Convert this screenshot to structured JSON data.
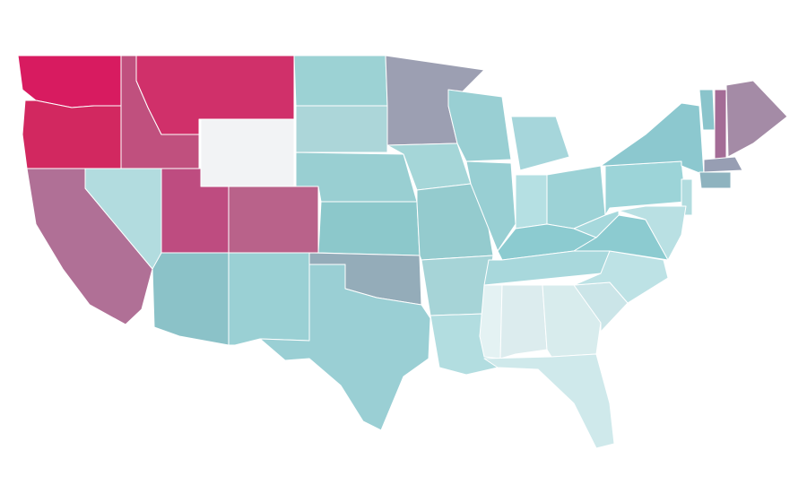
{
  "map": {
    "region_colors": [
      "#d81b60",
      "#d22860",
      "#c0507e",
      "#d0306a",
      "#f2f3f5",
      "#b07096",
      "#b2dcdf",
      "#be4c80",
      "#b9628a",
      "#8bc2c8",
      "#9ad0d4",
      "#9cd2d4",
      "#acd6d9",
      "#99cfd2",
      "#8cc8cb",
      "#94acb9",
      "#9acfd4",
      "#9c9fb2",
      "#a5d6d8",
      "#94cbce",
      "#a6d4d7",
      "#b2dde0",
      "#99cfd3",
      "#98cfd3",
      "#a6d6db",
      "#b5e0e3",
      "#9cd2d6",
      "#8ccbd0",
      "#a8d8dc",
      "#e4f2f3",
      "#dcecee",
      "#d8eced",
      "#cfe9eb",
      "#cbe5e8",
      "#bde2e5",
      "#8ccbd0",
      "#a6d8dc",
      "#9cd4d8",
      "#8cc8cf",
      "#b2dcdf",
      "#b9e0e3",
      "#8ac4cb",
      "#a46c96",
      "#a48ba6",
      "#979eb3",
      "#8eb3bf"
    ]
  }
}
